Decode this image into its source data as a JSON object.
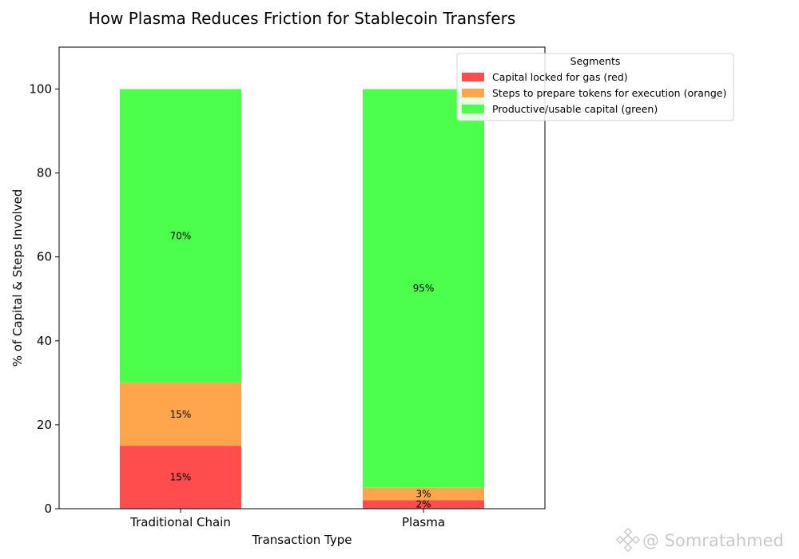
{
  "chart_data": {
    "type": "bar",
    "stacked": true,
    "title": "How Plasma Reduces Friction for Stablecoin Transfers",
    "xlabel": "Transaction Type",
    "ylabel": "% of Capital & Steps Involved",
    "categories": [
      "Traditional Chain",
      "Plasma"
    ],
    "ylim": [
      0,
      110
    ],
    "yticks": [
      0,
      20,
      40,
      60,
      80,
      100
    ],
    "grid": false,
    "legend": {
      "title": "Segments",
      "placement": "top-right"
    },
    "series": [
      {
        "name": "Capital locked for gas (red)",
        "color": "#ff4d4d",
        "values": [
          15,
          2
        ],
        "labels": [
          "15%",
          "2%"
        ]
      },
      {
        "name": "Steps to prepare tokens for execution (orange)",
        "color": "#ffa64d",
        "values": [
          15,
          3
        ],
        "labels": [
          "15%",
          "3%"
        ]
      },
      {
        "name": "Productive/usable capital (green)",
        "color": "#4dff4d",
        "values": [
          70,
          95
        ],
        "labels": [
          "70%",
          "95%"
        ]
      }
    ]
  },
  "watermark": {
    "icon": "binance-logo-icon",
    "text": "@ Somratahmed"
  }
}
